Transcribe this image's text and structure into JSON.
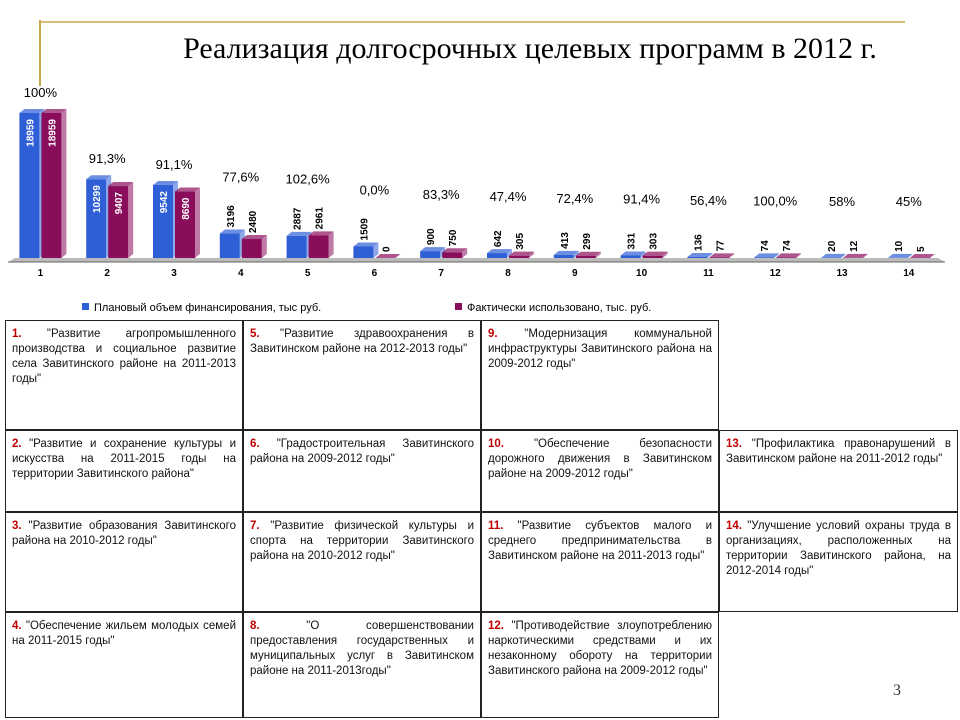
{
  "title": "Реализация долгосрочных целевых программ в 2012 г.",
  "chart_data": {
    "type": "bar",
    "categories": [
      "1",
      "2",
      "3",
      "4",
      "5",
      "6",
      "7",
      "8",
      "9",
      "10",
      "11",
      "12",
      "13",
      "14"
    ],
    "series": [
      {
        "name": "Плановый объем финансирования, тыс руб.",
        "color": "#2f5fd6",
        "values": [
          18959,
          10299,
          9542,
          3196,
          2887,
          1509,
          900,
          642,
          413,
          331,
          136,
          74,
          20,
          10
        ]
      },
      {
        "name": "Фактически использовано, тыс. руб.",
        "color": "#8a0d5c",
        "values": [
          18959,
          9407,
          8690,
          2480,
          2961,
          0,
          750,
          305,
          299,
          303,
          77,
          74,
          12,
          5
        ]
      }
    ],
    "annotations": [
      "100%",
      "91,3%",
      "91,1%",
      "77,6%",
      "102,6%",
      "0,0%",
      "83,3%",
      "47,4%",
      "72,4%",
      "91,4%",
      "56,4%",
      "100,0%",
      "58%",
      "45%"
    ]
  },
  "table": {
    "rows": [
      [
        {
          "num": "1.",
          "text": "\"Развитие агропромышленного производства и социальное развитие села Завитинского районе на 2011-2013 годы\""
        },
        {
          "num": "5.",
          "text": "\"Развитие здравоохранения в Завитинском районе на 2012-2013 годы\""
        },
        {
          "num": "9.",
          "text": "\"Модернизация коммунальной инфраструктуры Завитинского района на 2009-2012 годы\""
        },
        null
      ],
      [
        {
          "num": "2.",
          "text": "\"Развитие и сохранение культуры и искусства на 2011-2015 годы на территории Завитинского района\""
        },
        {
          "num": "6.",
          "text": "\"Градостроительная Завитинского района на 2009-2012 годы\""
        },
        {
          "num": "10.",
          "text": "\"Обеспечение безопасности дорожного движения в Завитинском районе на 2009-2012 годы\""
        },
        {
          "num": "13.",
          "text": "\"Профилактика правонарушений в Завитинском районе на 2011-2012 годы\""
        }
      ],
      [
        {
          "num": "3.",
          "text": "\"Развитие образования Завитинского района на 2010-2012 годы\""
        },
        {
          "num": "7.",
          "text": "\"Развитие физической культуры и спорта на территории Завитинского района на 2010-2012 годы\""
        },
        {
          "num": "11.",
          "text": "\"Развитие субъектов малого и среднего предпринимательства в Завитинском районе на 2011-2013 годы\""
        },
        {
          "num": "14.",
          "text": "\"Улучшение условий охраны труда в организациях, расположенных на территории Завитинского района, на 2012-2014 годы\""
        }
      ],
      [
        {
          "num": "4.",
          "text": "\"Обеспечение жильем молодых семей на 2011-2015 годы\""
        },
        {
          "num": "8.",
          "text": "\"О совершенствовании предоставления государственных и муниципальных услуг в Завитинском районе на 2011-2013годы\""
        },
        {
          "num": "12.",
          "text": "\"Противодействие злоупотреблению наркотическими средствами и их незаконному обороту на территории Завитинского района на 2009-2012 годы\""
        },
        null
      ]
    ]
  },
  "page_number": "3"
}
